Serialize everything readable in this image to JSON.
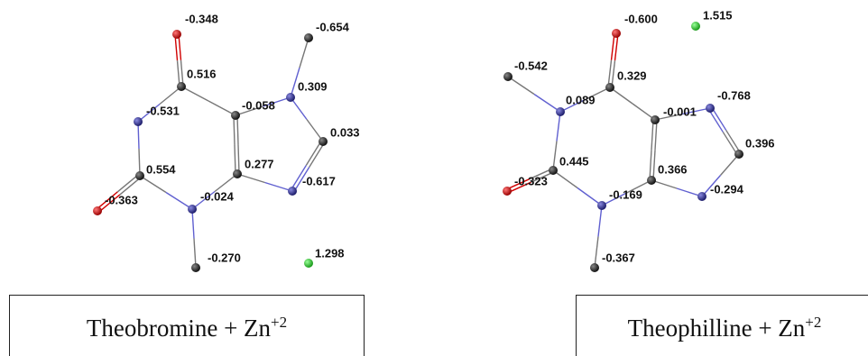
{
  "molecules": [
    {
      "caption": {
        "text": "Theobromine + Zn",
        "superscript": "+2"
      },
      "charges": [
        "-0.348",
        "0.516",
        "-0.531",
        "0.554",
        "-0.363",
        "-0.024",
        "-0.270",
        "0.277",
        "-0.058",
        "0.309",
        "-0.654",
        "0.033",
        "-0.617",
        "1.298"
      ]
    },
    {
      "caption": {
        "text": "Theophilline + Zn",
        "superscript": "+2"
      },
      "charges": [
        "-0.600",
        "1.515",
        "0.329",
        "0.089",
        "-0.542",
        "0.445",
        "-0.323",
        "-0.169",
        "-0.367",
        "0.366",
        "-0.001",
        "-0.768",
        "0.396",
        "-0.294"
      ]
    }
  ]
}
